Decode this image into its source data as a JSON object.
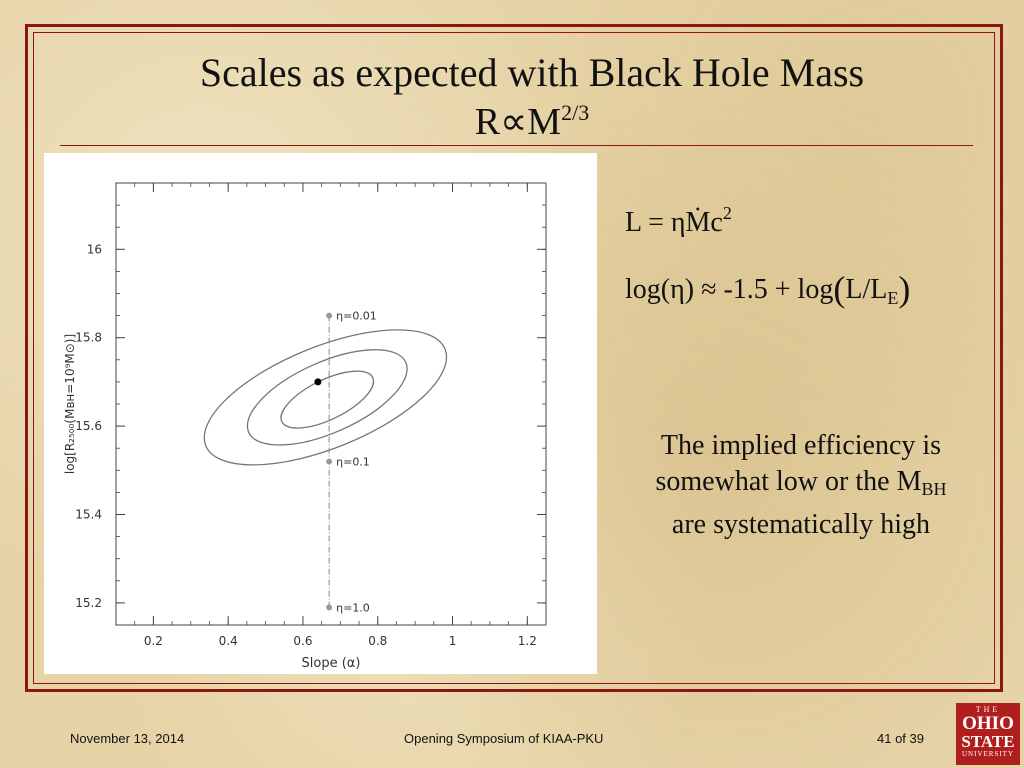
{
  "slide": {
    "title": "Scales as expected with Black Hole Mass",
    "subtitle_base": "R∝M",
    "subtitle_exp": "2/3"
  },
  "equations": {
    "eq1_lhs": "L = η",
    "eq1_mdot": "Ṁ",
    "eq1_c": "c",
    "eq1_exp": "2",
    "eq2_main": "log(η) ≈ -1.5 + log",
    "eq2_open": "(",
    "eq2_ratio": "L/L",
    "eq2_sub": "E",
    "eq2_close": ")"
  },
  "note": {
    "line1": "The implied efficiency is somewhat low or the M",
    "sub": "BH",
    "line2": " are systematically high"
  },
  "footer": {
    "date": "November 13, 2014",
    "event": "Opening Symposium of KIAA-PKU",
    "page": "41 of 39"
  },
  "logo": {
    "top": "THE",
    "ohio": "OHIO",
    "state": "STATE",
    "university": "UNIVERSITY"
  },
  "colors": {
    "frame": "#8f1414",
    "background": "#e6d3a6",
    "logo": "#b01e1e",
    "contour": "#777777"
  },
  "chart_data": {
    "type": "scatter",
    "xlabel": "Slope (α)",
    "ylabel": "log[R₂₅₀₀(Mʙʜ=10⁹M⊙)]",
    "xlim": [
      0.1,
      1.25
    ],
    "ylim": [
      15.15,
      16.15
    ],
    "xticks": [
      0.2,
      0.4,
      0.6,
      0.8,
      1,
      1.2
    ],
    "xtick_labels": [
      "0.2",
      "0.4",
      "0.6",
      "0.8",
      "1",
      "1.2"
    ],
    "yticks": [
      15.2,
      15.4,
      15.6,
      15.8,
      16
    ],
    "ytick_labels": [
      "15.2",
      "15.4",
      "15.6",
      "15.8",
      "16"
    ],
    "best_fit": {
      "x": 0.64,
      "y": 15.7
    },
    "contours": [
      {
        "cx": 0.66,
        "cy": 15.665,
        "a": 0.345,
        "b": 0.115,
        "rot": 22
      },
      {
        "cx": 0.665,
        "cy": 15.665,
        "a": 0.23,
        "b": 0.08,
        "rot": 24
      },
      {
        "cx": 0.665,
        "cy": 15.66,
        "a": 0.135,
        "b": 0.045,
        "rot": 26
      }
    ],
    "efficiency_line": {
      "x": 0.67,
      "points": [
        {
          "y": 15.85,
          "label": "η=0.01"
        },
        {
          "y": 15.52,
          "label": "η=0.1"
        },
        {
          "y": 15.19,
          "label": "η=1.0"
        }
      ]
    }
  }
}
